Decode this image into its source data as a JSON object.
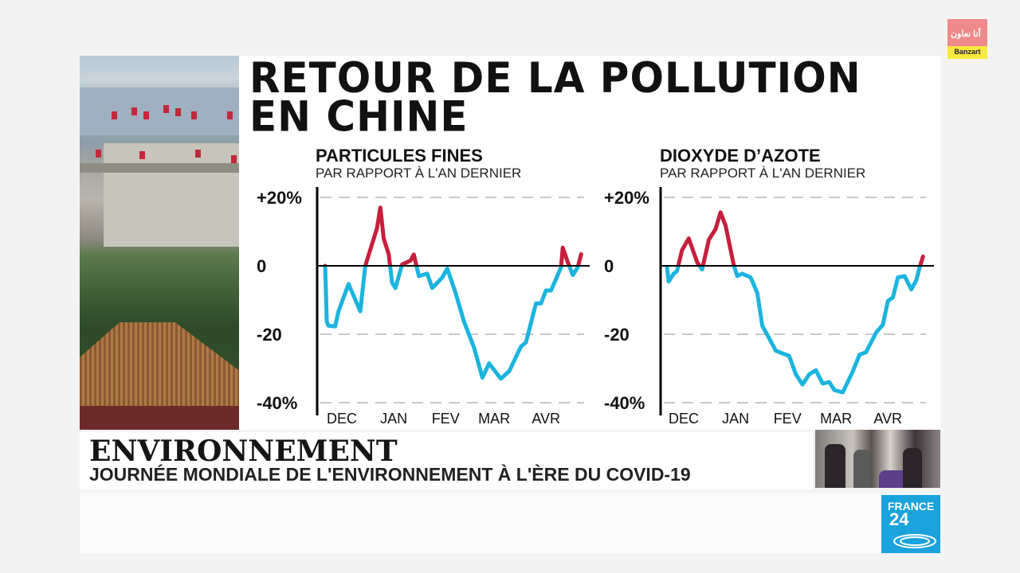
{
  "headline": {
    "line1": "RETOUR DE LA POLLUTION",
    "line2": "EN CHINE"
  },
  "lower_third": {
    "topic": "ENVIRONNEMENT",
    "subtitle": "JOURNÉE MONDIALE DE L'ENVIRONNEMENT À L'ÈRE DU COVID-19"
  },
  "channel_logo": {
    "line1": "FRANCE",
    "line2": "24"
  },
  "partner_logo": {
    "arabic": "أنا نعاون",
    "name": "Banzart"
  },
  "colors": {
    "above_zero": "#c61f3c",
    "below_zero": "#1bb4de",
    "grid": "#c8c8c8"
  },
  "chart_data": [
    {
      "type": "line",
      "title": "PARTICULES FINES",
      "subtitle": "PAR RAPPORT À L'AN DERNIER",
      "ylim": [
        -40,
        20
      ],
      "yticks": [
        {
          "value": 20,
          "label": "+20%"
        },
        {
          "value": 0,
          "label": "0"
        },
        {
          "value": -20,
          "label": "-20"
        },
        {
          "value": -40,
          "label": "-40%"
        }
      ],
      "xticks": [
        "DEC",
        "JAN",
        "FEV",
        "MAR",
        "AVR"
      ],
      "grid": true,
      "x": [
        "12-01",
        "12-02",
        "12-03",
        "12-07",
        "12-09",
        "12-15",
        "12-22",
        "12-25",
        "01-01",
        "01-03",
        "01-05",
        "01-08",
        "01-10",
        "01-12",
        "01-16",
        "01-21",
        "01-23",
        "01-26",
        "01-31",
        "02-03",
        "02-09",
        "02-12",
        "02-17",
        "02-22",
        "02-28",
        "03-04",
        "03-08",
        "03-15",
        "03-20",
        "03-27",
        "03-30",
        "04-05",
        "04-08",
        "04-11",
        "04-14",
        "04-20",
        "04-21",
        "04-24",
        "04-27",
        "04-30",
        "05-02"
      ],
      "values": [
        0,
        -16.3,
        -17.5,
        -17.7,
        -13.3,
        -5.3,
        -13.3,
        0,
        11,
        17,
        8,
        3.4,
        -4.9,
        -6.5,
        0.4,
        1.5,
        3.3,
        -3,
        -2.3,
        -6.5,
        -3.4,
        -0.8,
        -8,
        -16.3,
        -23.9,
        -32.7,
        -28.5,
        -33,
        -30.8,
        -23.6,
        -22.4,
        -11,
        -11,
        -7.2,
        -7.2,
        -0.4,
        5.3,
        1.1,
        -2.7,
        -0.4,
        3.4
      ]
    },
    {
      "type": "line",
      "title": "DIOXYDE D’AZOTE",
      "subtitle": "PAR RAPPORT À L'AN DERNIER",
      "ylim": [
        -40,
        20
      ],
      "yticks": [
        {
          "value": 20,
          "label": "+20%"
        },
        {
          "value": 0,
          "label": "0"
        },
        {
          "value": -20,
          "label": "-20"
        },
        {
          "value": -40,
          "label": "-40%"
        }
      ],
      "xticks": [
        "DEC",
        "JAN",
        "FEV",
        "MAR",
        "AVR"
      ],
      "grid": true,
      "x": [
        "12-01",
        "12-02",
        "12-05",
        "12-07",
        "12-10",
        "12-14",
        "12-19",
        "12-22",
        "12-26",
        "12-30",
        "01-02",
        "01-05",
        "01-10",
        "01-12",
        "01-15",
        "01-20",
        "01-24",
        "01-27",
        "01-30",
        "02-04",
        "02-08",
        "02-12",
        "02-16",
        "02-20",
        "02-24",
        "02-28",
        "03-03",
        "03-07",
        "03-10",
        "03-15",
        "03-21",
        "03-25",
        "03-29",
        "04-04",
        "04-08",
        "04-11",
        "04-14",
        "04-17",
        "04-21",
        "04-25",
        "04-28",
        "04-30",
        "05-02"
      ],
      "values": [
        -0.4,
        -4.6,
        -2.3,
        -1.5,
        4.6,
        8,
        1.1,
        -1.1,
        7.6,
        10.7,
        15.6,
        11.8,
        0,
        -3,
        -2.3,
        -3.4,
        -8,
        -17.6,
        -20.2,
        -24.8,
        -25.6,
        -26.3,
        -31.7,
        -34.7,
        -31.7,
        -30.5,
        -34.4,
        -34,
        -36.3,
        -37,
        -30.9,
        -26,
        -25.2,
        -19.5,
        -17.2,
        -10.3,
        -9.2,
        -3.4,
        -3,
        -6.9,
        -4.2,
        -0.4,
        2.7
      ]
    }
  ]
}
